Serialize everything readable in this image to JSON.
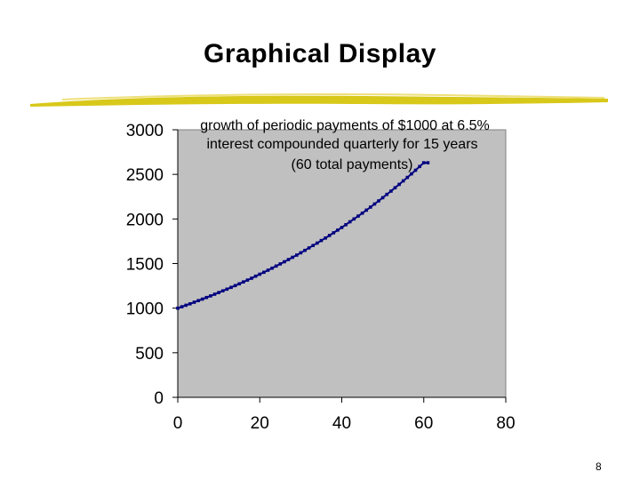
{
  "slide": {
    "title": "Graphical Display",
    "page_number": "8"
  },
  "colors": {
    "plot_background": "#c0c0c0",
    "series": "#000080",
    "title_rule": "#d8c81a"
  },
  "chart_data": {
    "type": "line",
    "title_lines": [
      "growth of periodic payments of $1000 at 6.5%",
      "interest compounded quarterly for 15 years",
      "(60 total payments)"
    ],
    "xlabel": "",
    "ylabel": "",
    "xlim": [
      0,
      80
    ],
    "ylim": [
      0,
      3000
    ],
    "xticks": [
      0,
      20,
      40,
      60,
      80
    ],
    "yticks": [
      0,
      500,
      1000,
      1500,
      2000,
      2500,
      3000
    ],
    "grid": false,
    "legend": "none",
    "marker": "small square",
    "series": [
      {
        "x": [
          0,
          1,
          2,
          3,
          4,
          5,
          6,
          7,
          8,
          9,
          10,
          11,
          12,
          13,
          14,
          15,
          16,
          17,
          18,
          19,
          20,
          21,
          22,
          23,
          24,
          25,
          26,
          27,
          28,
          29,
          30,
          31,
          32,
          33,
          34,
          35,
          36,
          37,
          38,
          39,
          40,
          41,
          42,
          43,
          44,
          45,
          46,
          47,
          48,
          49,
          50,
          51,
          52,
          53,
          54,
          55,
          56,
          57,
          58,
          59,
          60,
          61
        ],
        "values": [
          1000,
          1016,
          1033,
          1049,
          1066,
          1084,
          1101,
          1119,
          1137,
          1156,
          1175,
          1194,
          1213,
          1233,
          1253,
          1273,
          1294,
          1315,
          1336,
          1358,
          1380,
          1402,
          1425,
          1448,
          1472,
          1496,
          1520,
          1545,
          1570,
          1595,
          1621,
          1648,
          1675,
          1702,
          1729,
          1758,
          1786,
          1815,
          1845,
          1875,
          1905,
          1936,
          1968,
          2000,
          2032,
          2065,
          2099,
          2133,
          2168,
          2203,
          2239,
          2275,
          2312,
          2350,
          2388,
          2427,
          2466,
          2506,
          2547,
          2588,
          2630,
          2630
        ]
      }
    ]
  }
}
